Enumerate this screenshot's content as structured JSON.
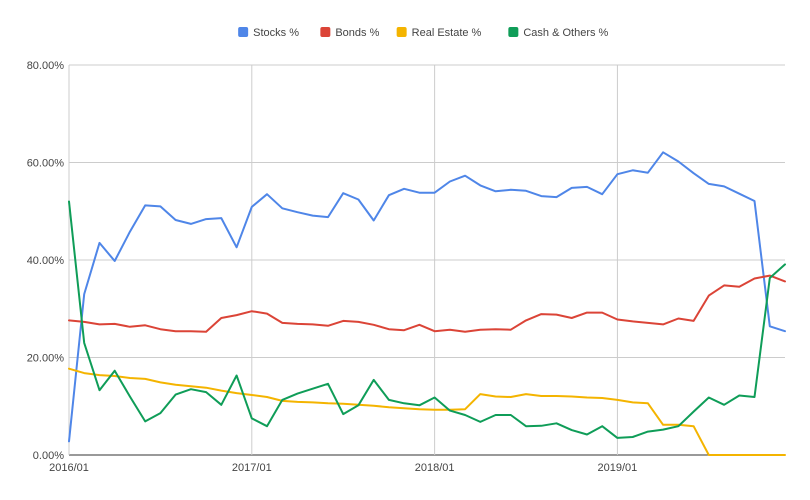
{
  "chart_data": {
    "type": "line",
    "title": "",
    "xlabel": "",
    "ylabel": "",
    "ylim": [
      0,
      80
    ],
    "grid": true,
    "legend_position": "top",
    "y_ticks": [
      "0.00%",
      "20.00%",
      "40.00%",
      "60.00%",
      "80.00%"
    ],
    "x_ticks": [
      {
        "label": "2016/01",
        "index": 0
      },
      {
        "label": "2017/01",
        "index": 12
      },
      {
        "label": "2018/01",
        "index": 24
      },
      {
        "label": "2019/01",
        "index": 36
      }
    ],
    "x": [
      "2016/01",
      "2016/02",
      "2016/03",
      "2016/04",
      "2016/05",
      "2016/06",
      "2016/07",
      "2016/08",
      "2016/09",
      "2016/10",
      "2016/11",
      "2016/12",
      "2017/01",
      "2017/02",
      "2017/03",
      "2017/04",
      "2017/05",
      "2017/06",
      "2017/07",
      "2017/08",
      "2017/09",
      "2017/10",
      "2017/11",
      "2017/12",
      "2018/01",
      "2018/02",
      "2018/03",
      "2018/04",
      "2018/05",
      "2018/06",
      "2018/07",
      "2018/08",
      "2018/09",
      "2018/10",
      "2018/11",
      "2018/12",
      "2019/01",
      "2019/02",
      "2019/03",
      "2019/04",
      "2019/05",
      "2019/06",
      "2019/07",
      "2019/08",
      "2019/09",
      "2019/10",
      "2019/11",
      "2019/12"
    ],
    "series": [
      {
        "name": "Stocks %",
        "color": "#4f86e8",
        "values": [
          2.8,
          33,
          43.5,
          39.8,
          45.8,
          51.2,
          51,
          48.2,
          47.4,
          48.4,
          48.6,
          42.6,
          50.9,
          53.5,
          50.6,
          49.8,
          49.1,
          48.8,
          53.7,
          52.4,
          48.1,
          53.3,
          54.6,
          53.8,
          53.8,
          56.1,
          57.3,
          55.3,
          54.1,
          54.4,
          54.2,
          53.1,
          52.9,
          54.8,
          55,
          53.5,
          57.6,
          58.4,
          57.9,
          62.1,
          60.2,
          57.8,
          55.6,
          55.1,
          53.6,
          52.1,
          26.4,
          25.4
        ]
      },
      {
        "name": "Bonds %",
        "color": "#db4437",
        "values": [
          27.6,
          27.3,
          26.8,
          26.9,
          26.3,
          26.6,
          25.8,
          25.4,
          25.4,
          25.3,
          28.1,
          28.7,
          29.5,
          29,
          27.1,
          26.9,
          26.8,
          26.5,
          27.5,
          27.3,
          26.7,
          25.8,
          25.6,
          26.7,
          25.4,
          25.7,
          25.3,
          25.7,
          25.8,
          25.7,
          27.6,
          28.9,
          28.8,
          28.1,
          29.2,
          29.2,
          27.8,
          27.4,
          27.1,
          26.8,
          28,
          27.5,
          32.7,
          34.8,
          34.5,
          36.2,
          36.8,
          35.6
        ]
      },
      {
        "name": "Real Estate %",
        "color": "#f4b400",
        "values": [
          17.7,
          16.8,
          16.4,
          16.2,
          15.8,
          15.6,
          14.9,
          14.4,
          14.1,
          13.8,
          13.2,
          12.7,
          12.3,
          11.9,
          11.1,
          10.9,
          10.8,
          10.6,
          10.5,
          10.3,
          10.1,
          9.8,
          9.6,
          9.4,
          9.3,
          9.3,
          9.4,
          12.5,
          12,
          11.9,
          12.5,
          12.1,
          12.1,
          12,
          11.8,
          11.7,
          11.3,
          10.8,
          10.6,
          6.2,
          6.2,
          5.9,
          0,
          0,
          0,
          0,
          0,
          0
        ]
      },
      {
        "name": "Cash & Others %",
        "color": "#0f9d58",
        "values": [
          52,
          23,
          13.3,
          17.3,
          12,
          6.9,
          8.6,
          12.4,
          13.5,
          12.9,
          10.3,
          16.3,
          7.5,
          5.9,
          11.3,
          12.6,
          13.6,
          14.6,
          8.4,
          10.2,
          15.4,
          11.3,
          10.6,
          10.2,
          11.8,
          9.1,
          8.2,
          6.8,
          8.2,
          8.2,
          5.9,
          6,
          6.5,
          5.1,
          4.2,
          5.9,
          3.5,
          3.7,
          4.8,
          5.2,
          5.9,
          8.9,
          11.8,
          10.3,
          12.2,
          11.9,
          36.3,
          39.1
        ]
      }
    ]
  }
}
